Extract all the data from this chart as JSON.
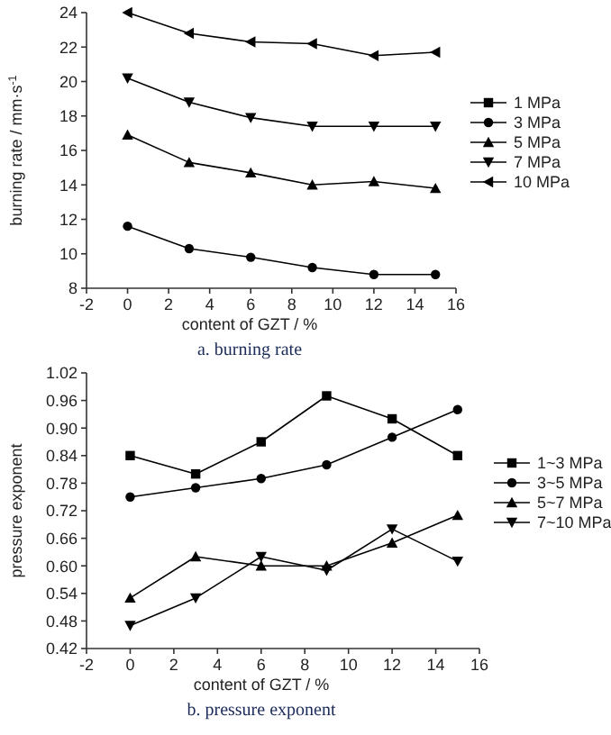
{
  "chart_data": [
    {
      "type": "line",
      "title": "a.  burning rate",
      "xlabel": "content of GZT / %",
      "ylabel": "burning rate / mm·s$^{-1}$",
      "x": [
        0,
        3,
        6,
        9,
        12,
        15
      ],
      "xlim": [
        -2,
        16
      ],
      "xticks": [
        -2,
        0,
        2,
        4,
        6,
        8,
        10,
        12,
        14,
        16
      ],
      "ylim": [
        8,
        24
      ],
      "yticks": [
        8,
        10,
        12,
        14,
        16,
        18,
        20,
        22,
        24
      ],
      "grid": false,
      "legend": "right",
      "color": "#000000",
      "series": [
        {
          "name": "1 MPa",
          "marker": "square",
          "values": [
            null,
            null,
            null,
            null,
            null,
            null
          ]
        },
        {
          "name": "3 MPa",
          "marker": "circle",
          "values": [
            11.6,
            10.3,
            9.8,
            9.2,
            8.8,
            8.8
          ]
        },
        {
          "name": "5 MPa",
          "marker": "triangle",
          "values": [
            16.9,
            15.3,
            14.7,
            14.0,
            14.2,
            13.8
          ]
        },
        {
          "name": "7 MPa",
          "marker": "triangle-down",
          "values": [
            20.2,
            18.8,
            17.9,
            17.4,
            17.4,
            17.4
          ]
        },
        {
          "name": "10 MPa",
          "marker": "triangle-left",
          "values": [
            24.0,
            22.8,
            22.3,
            22.2,
            21.5,
            21.7
          ]
        }
      ]
    },
    {
      "type": "line",
      "title": "b.  pressure exponent",
      "xlabel": "content of GZT / %",
      "ylabel": "pressure exponent",
      "x": [
        0,
        3,
        6,
        9,
        12,
        15
      ],
      "xlim": [
        -2,
        16
      ],
      "xticks": [
        -2,
        0,
        2,
        4,
        6,
        8,
        10,
        12,
        14,
        16
      ],
      "ylim": [
        0.42,
        1.02
      ],
      "yticks": [
        0.42,
        0.48,
        0.54,
        {
          "value": 0.6,
          "label": "0.60"
        },
        0.66,
        0.72,
        0.78,
        0.84,
        {
          "value": 0.9,
          "label": "0.90"
        },
        0.96,
        1.02
      ],
      "grid": false,
      "legend": "right",
      "color": "#000000",
      "series": [
        {
          "name": "1~3 MPa",
          "marker": "square",
          "values": [
            0.84,
            0.8,
            0.87,
            0.97,
            0.92,
            0.84
          ]
        },
        {
          "name": "3~5 MPa",
          "marker": "circle",
          "values": [
            0.75,
            0.77,
            0.79,
            0.82,
            0.88,
            0.94
          ]
        },
        {
          "name": "5~7 MPa",
          "marker": "triangle",
          "values": [
            0.53,
            0.62,
            0.6,
            0.6,
            0.65,
            0.71
          ]
        },
        {
          "name": "7~10 MPa",
          "marker": "triangle-down",
          "values": [
            0.47,
            0.53,
            0.62,
            0.59,
            0.68,
            0.61
          ]
        }
      ]
    }
  ]
}
